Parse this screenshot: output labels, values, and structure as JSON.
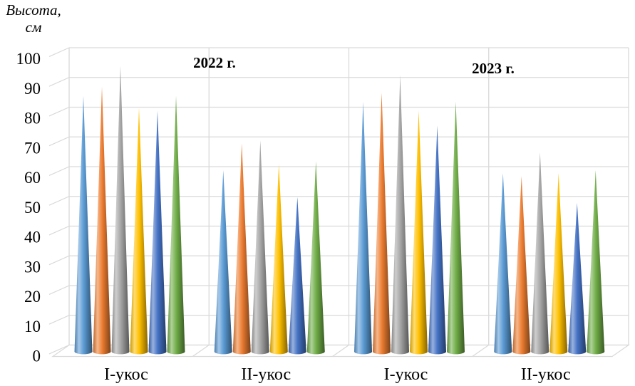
{
  "title": {
    "line1": "Высота,",
    "line2": "см"
  },
  "chart_data": {
    "type": "bar",
    "variant": "3d-cone",
    "title": "Высота, см",
    "ylabel": "Высота, см",
    "xlabel": "",
    "ylim": [
      0,
      100
    ],
    "ytick_step": 10,
    "yticks": [
      0,
      10,
      20,
      30,
      40,
      50,
      60,
      70,
      80,
      90,
      100
    ],
    "grid": true,
    "legend": false,
    "panel_labels": [
      "2022 г.",
      "2023 г."
    ],
    "categories": [
      "I-укос",
      "II-укос",
      "I-укос",
      "II-укос"
    ],
    "series": [
      {
        "name": "series-1-blue",
        "color": "#5B9BD5",
        "values": [
          86,
          61,
          84,
          60
        ]
      },
      {
        "name": "series-2-orange",
        "color": "#ED7D31",
        "values": [
          89,
          70,
          87,
          59
        ]
      },
      {
        "name": "series-3-gray",
        "color": "#A5A5A5",
        "values": [
          96,
          71,
          93,
          67
        ]
      },
      {
        "name": "series-4-yellow",
        "color": "#FFC000",
        "values": [
          82,
          63,
          81,
          60
        ]
      },
      {
        "name": "series-5-dark-blue",
        "color": "#4472C4",
        "values": [
          81,
          52,
          76,
          50
        ]
      },
      {
        "name": "series-6-green",
        "color": "#70AD47",
        "values": [
          86,
          64,
          84,
          61
        ]
      }
    ],
    "colors": {
      "gridline": "#D9D9D9",
      "axis_text": "#000000",
      "background": "#FFFFFF"
    }
  }
}
